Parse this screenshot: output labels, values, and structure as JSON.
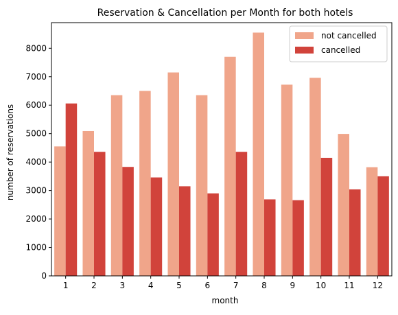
{
  "chart_data": {
    "type": "bar",
    "title": "Reservation & Cancellation per Month for both hotels",
    "xlabel": "month",
    "ylabel": "number of reservations",
    "categories": [
      "1",
      "2",
      "3",
      "4",
      "5",
      "6",
      "7",
      "8",
      "9",
      "10",
      "11",
      "12"
    ],
    "series": [
      {
        "name": "not cancelled",
        "color": "#f0a58a",
        "values": [
          4550,
          5090,
          6350,
          6500,
          7150,
          6350,
          7700,
          8550,
          6720,
          6960,
          4990,
          3820
        ]
      },
      {
        "name": "cancelled",
        "color": "#d1433b",
        "values": [
          6060,
          4360,
          3830,
          3460,
          3150,
          2900,
          4360,
          2690,
          2660,
          4150,
          3040,
          3500
        ]
      }
    ],
    "ylim": [
      0,
      8900
    ],
    "yticks": [
      0,
      1000,
      2000,
      3000,
      4000,
      5000,
      6000,
      7000,
      8000
    ],
    "grid": false,
    "legend_position": "top-right"
  }
}
